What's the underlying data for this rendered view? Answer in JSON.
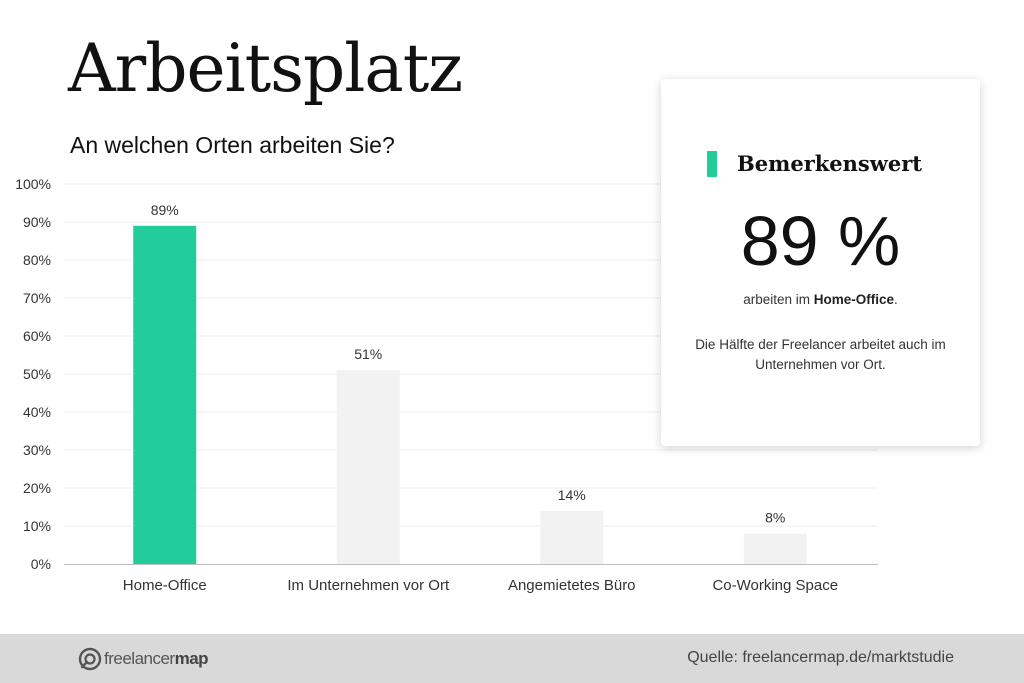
{
  "title": "Arbeitsplatz",
  "subtitle": "An welchen Orten arbeiten Sie?",
  "chart_data": {
    "type": "bar",
    "categories": [
      "Home-Office",
      "Im Unternehmen vor Ort",
      "Angemietetes Büro",
      "Co-Working Space"
    ],
    "values": [
      89,
      51,
      14,
      8
    ],
    "data_labels": [
      "89%",
      "51%",
      "14%",
      "8%"
    ],
    "ylim": [
      0,
      100
    ],
    "y_ticks": [
      0,
      10,
      20,
      30,
      40,
      50,
      60,
      70,
      80,
      90,
      100
    ],
    "y_tick_suffix": "%",
    "highlight_index": 0,
    "highlight_color": "#22cc9b",
    "bar_color": "#f2f2f2",
    "grid": true
  },
  "callout": {
    "heading": "Bemerkenswert",
    "value": "89 %",
    "line1_prefix": "arbeiten im ",
    "line1_bold": "Home-Office",
    "line1_suffix": ".",
    "note": "Die Hälfte der Freelancer arbeitet auch im Unternehmen vor Ort.",
    "accent_color": "#22cc9b"
  },
  "footer": {
    "logo_light": "freelancer",
    "logo_bold": "map",
    "source": "Quelle: freelancermap.de/marktstudie"
  }
}
